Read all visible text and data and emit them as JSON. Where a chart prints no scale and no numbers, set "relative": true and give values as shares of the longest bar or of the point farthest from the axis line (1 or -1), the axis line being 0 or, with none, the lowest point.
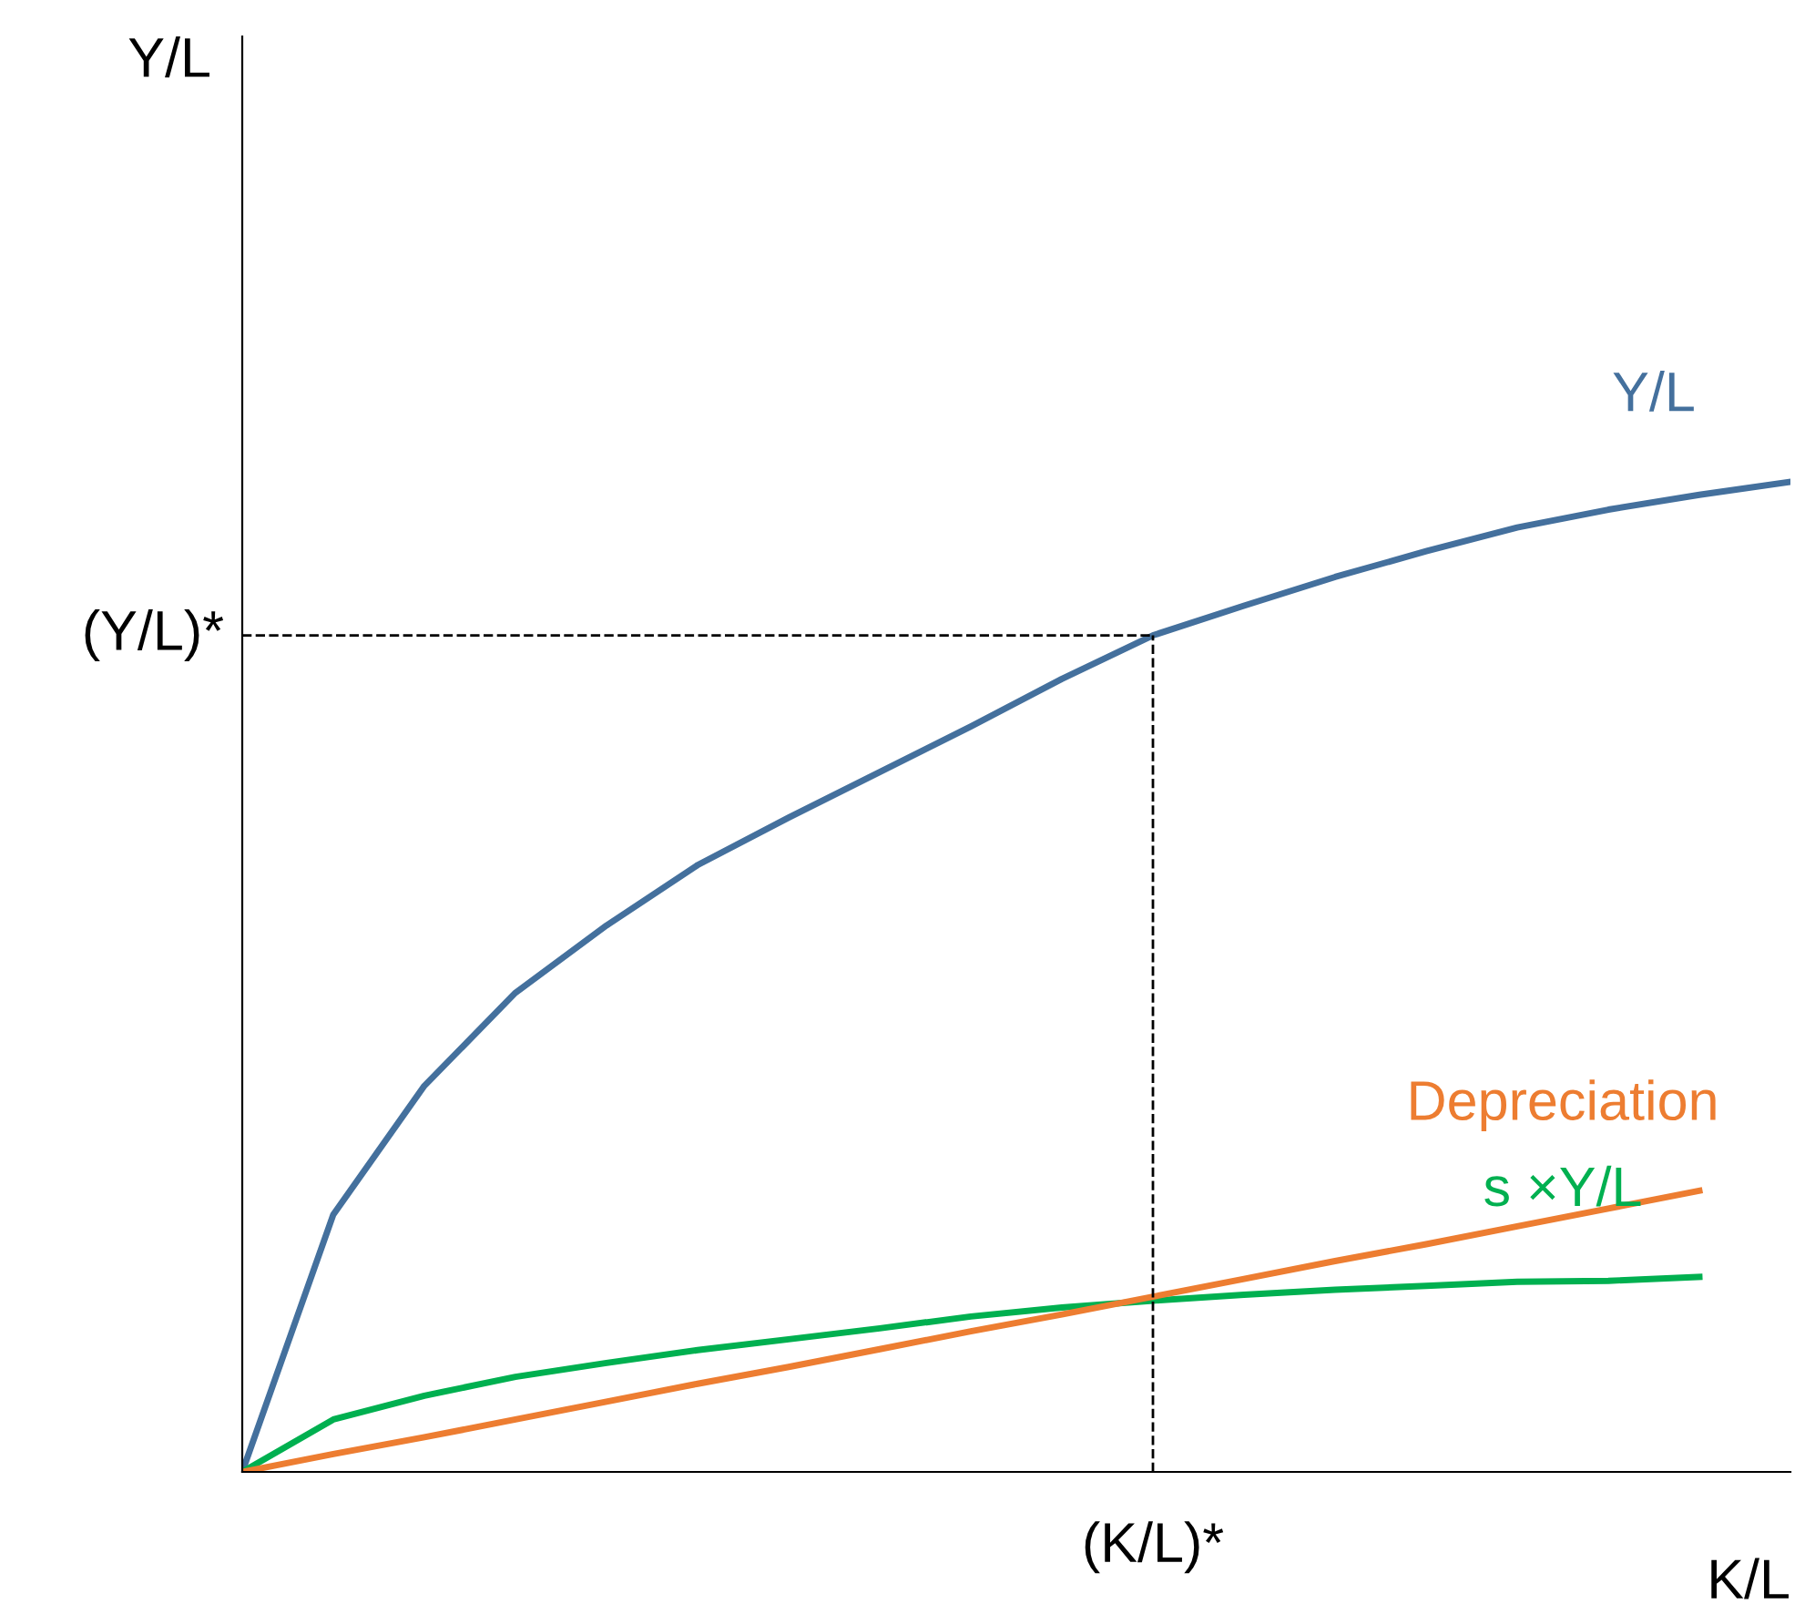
{
  "chart_data": {
    "type": "line",
    "relative": true,
    "xlabel": "K/L",
    "legend": false,
    "marker": "none",
    "line_style": "solid",
    "annotations": [
      "Y/L",
      "(K/L)*"
    ],
    "categories": [
      null,
      null,
      null,
      null,
      null,
      null,
      null,
      null,
      null,
      null,
      null,
      null,
      null,
      null,
      null,
      null,
      null,
      null
    ],
    "series": [
      {
        "name": "Y/L",
        "color": "#44709d",
        "values": [
          0,
          0.26,
          0.39,
          0.484,
          0.552,
          0.613,
          0.661,
          0.707,
          0.753,
          0.801,
          0.845,
          0.875,
          0.904,
          0.93,
          0.954,
          0.972,
          0.987,
          1.0
        ]
      },
      {
        "name": "s ×Y/L",
        "color": "#00b050",
        "values": [
          0,
          0.053,
          0.077,
          0.096,
          0.11,
          0.123,
          0.134,
          0.145,
          0.157,
          0.166,
          0.173,
          0.179,
          0.184,
          0.188,
          0.192,
          0.193,
          0.197,
          null
        ]
      },
      {
        "name": "Depreciation",
        "color": "#ed7d31",
        "values": [
          0,
          0.018,
          0.035,
          0.053,
          0.071,
          0.089,
          0.106,
          0.124,
          0.142,
          0.159,
          0.177,
          0.195,
          0.213,
          0.23,
          0.248,
          0.266,
          0.284,
          null
        ]
      }
    ],
    "ref_lines": [
      {
        "axis": "y",
        "value": 0.845,
        "label": "(Y/L)*",
        "color": "#000000",
        "line_style": "dashed"
      }
    ]
  }
}
